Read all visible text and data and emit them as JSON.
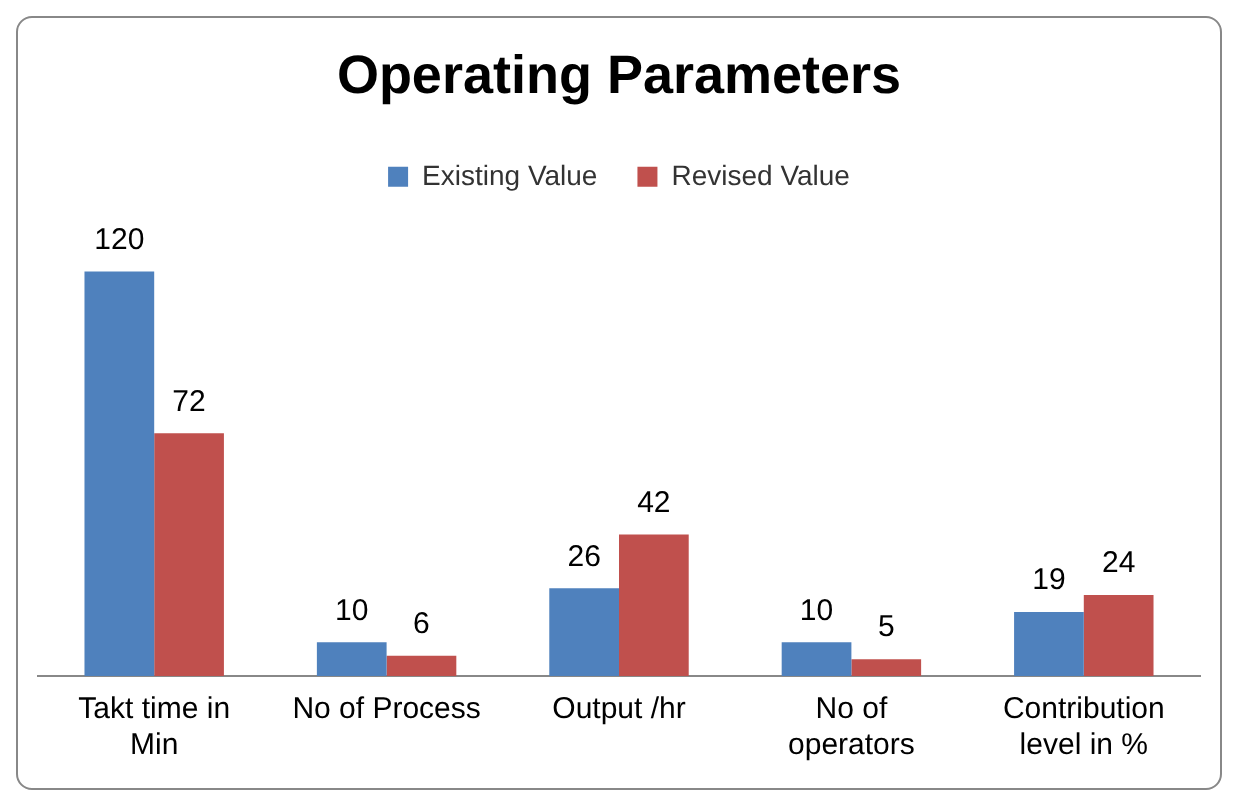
{
  "chart_data": {
    "type": "bar",
    "title": "Operating Parameters",
    "categories": [
      "Takt time in Min",
      "No of Process",
      "Output /hr",
      "No of operators",
      "Contribution level in %"
    ],
    "series": [
      {
        "name": "Existing Value",
        "color": "#4f81bd",
        "values": [
          120,
          10,
          26,
          10,
          19
        ]
      },
      {
        "name": "Revised Value",
        "color": "#c0504d",
        "values": [
          72,
          6,
          42,
          5,
          24
        ]
      }
    ],
    "data_labels": true,
    "legend": "top",
    "grid": false
  }
}
